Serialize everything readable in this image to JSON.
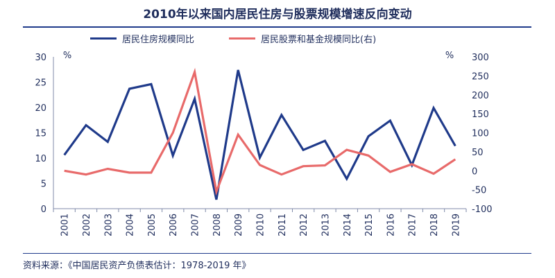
{
  "chart_data": {
    "type": "line",
    "title": "2010年以来国内居民住房与股票规模增速反向变动",
    "categories": [
      "2001",
      "2002",
      "2003",
      "2004",
      "2005",
      "2006",
      "2007",
      "2008",
      "2009",
      "2010",
      "2011",
      "2012",
      "2013",
      "2014",
      "2015",
      "2016",
      "2017",
      "2018",
      "2019"
    ],
    "left_axis": {
      "unit": "%",
      "ylim": [
        0,
        30
      ],
      "ticks": [
        "0",
        "5",
        "10",
        "15",
        "20",
        "25",
        "30"
      ]
    },
    "right_axis": {
      "unit": "%",
      "ylim": [
        -100,
        300
      ],
      "ticks": [
        "-100",
        "-50",
        "0",
        "50",
        "100",
        "150",
        "200",
        "250",
        "300"
      ]
    },
    "series": [
      {
        "name": "居民住房规模同比",
        "axis": "left",
        "color": "#1f3a8a",
        "values": [
          10.6,
          16.5,
          13.2,
          23.7,
          24.6,
          10.5,
          21.7,
          1.8,
          27.4,
          10.1,
          18.5,
          11.6,
          13.4,
          5.9,
          14.3,
          17.4,
          8.6,
          19.9,
          12.4
        ]
      },
      {
        "name": "居民股票和基金规模同比(右)",
        "axis": "right",
        "color": "#e86a6a",
        "values": [
          0,
          -10,
          5,
          -5,
          -5,
          100,
          260,
          -55,
          95,
          15,
          -10,
          12,
          14,
          55,
          40,
          -3,
          17,
          -8,
          30
        ]
      }
    ],
    "legend_position": "top",
    "grid": false
  },
  "source": "资料来源：《中国居民资产负债表估计：1978-2019 年》"
}
